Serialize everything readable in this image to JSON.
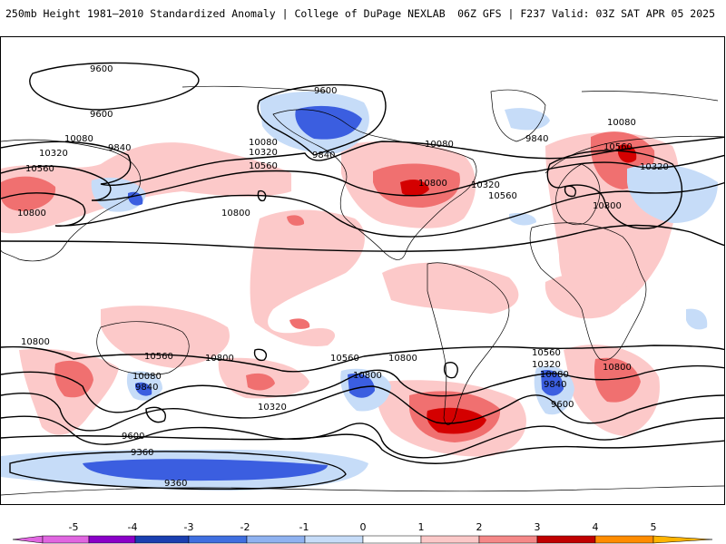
{
  "header": {
    "title_left": "250mb Height 1981–2010 Standardized Anomaly | College of DuPage NEXLAB",
    "title_right": "06Z GFS | F237 Valid: 03Z SAT APR 05 2025"
  },
  "contour_labels": [
    "9600",
    "9600",
    "9600",
    "10080",
    "10320",
    "10560",
    "9840",
    "10800",
    "10080",
    "10320",
    "10560",
    "9840",
    "10800",
    "10080",
    "10800",
    "10320",
    "10560",
    "9840",
    "10080",
    "10560",
    "10320",
    "10800",
    "10800",
    "10800",
    "10560",
    "10800",
    "10320",
    "10080",
    "9840",
    "9600",
    "9360",
    "9360",
    "10560",
    "10800",
    "10560",
    "10320",
    "10080",
    "9840",
    "9600",
    "10800"
  ],
  "colorbar": {
    "tick_labels": [
      "-5",
      "-4",
      "-3",
      "-2",
      "-1",
      "0",
      "1",
      "2",
      "3",
      "4",
      "5"
    ],
    "colors": [
      "#e066e0",
      "#8a00c8",
      "#1a3fb0",
      "#3f6fe0",
      "#8fb2f0",
      "#c6dcf8",
      "#ffffff",
      "#ffffff",
      "#fbc8c8",
      "#f58888",
      "#e64545",
      "#c00000",
      "#ff8c00",
      "#ffb400"
    ]
  },
  "colors": {
    "strong_positive": "#d40000",
    "moderate_positive": "#f07070",
    "weak_positive": "#fcc9c9",
    "strong_negative": "#3b5ee0",
    "weak_negative": "#c6dcf8",
    "contour": "#000000",
    "coastline": "#000000"
  }
}
